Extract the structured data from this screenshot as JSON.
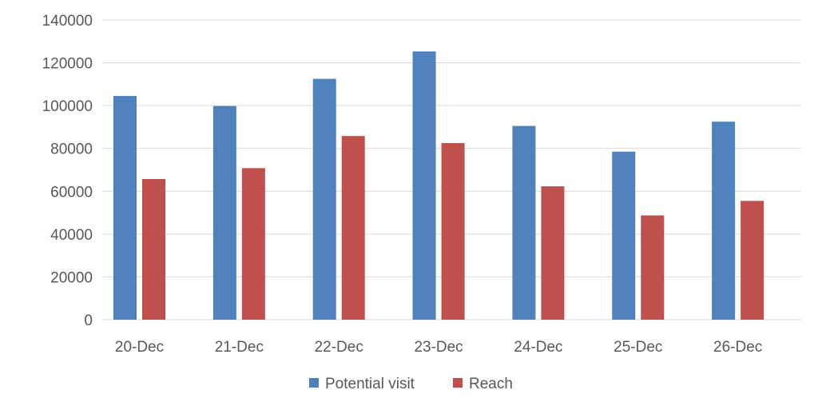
{
  "chart_data": {
    "type": "bar",
    "title": "",
    "xlabel": "",
    "ylabel": "",
    "categories": [
      "20-Dec",
      "21-Dec",
      "22-Dec",
      "23-Dec",
      "24-Dec",
      "25-Dec",
      "26-Dec"
    ],
    "series": [
      {
        "name": "Potential visit",
        "color": "#4f81bd",
        "values": [
          104500,
          99800,
          112500,
          125300,
          90500,
          78500,
          92500
        ]
      },
      {
        "name": "Reach",
        "color": "#c0504d",
        "values": [
          65700,
          70800,
          85800,
          82500,
          62300,
          48700,
          55500
        ]
      }
    ],
    "ylim": [
      0,
      140000
    ],
    "yticks": [
      0,
      20000,
      40000,
      60000,
      80000,
      100000,
      120000,
      140000
    ],
    "ytick_labels": [
      "0",
      "20000",
      "40000",
      "60000",
      "80000",
      "100000",
      "120000",
      "140000"
    ],
    "grid": true,
    "legend_position": "bottom"
  }
}
